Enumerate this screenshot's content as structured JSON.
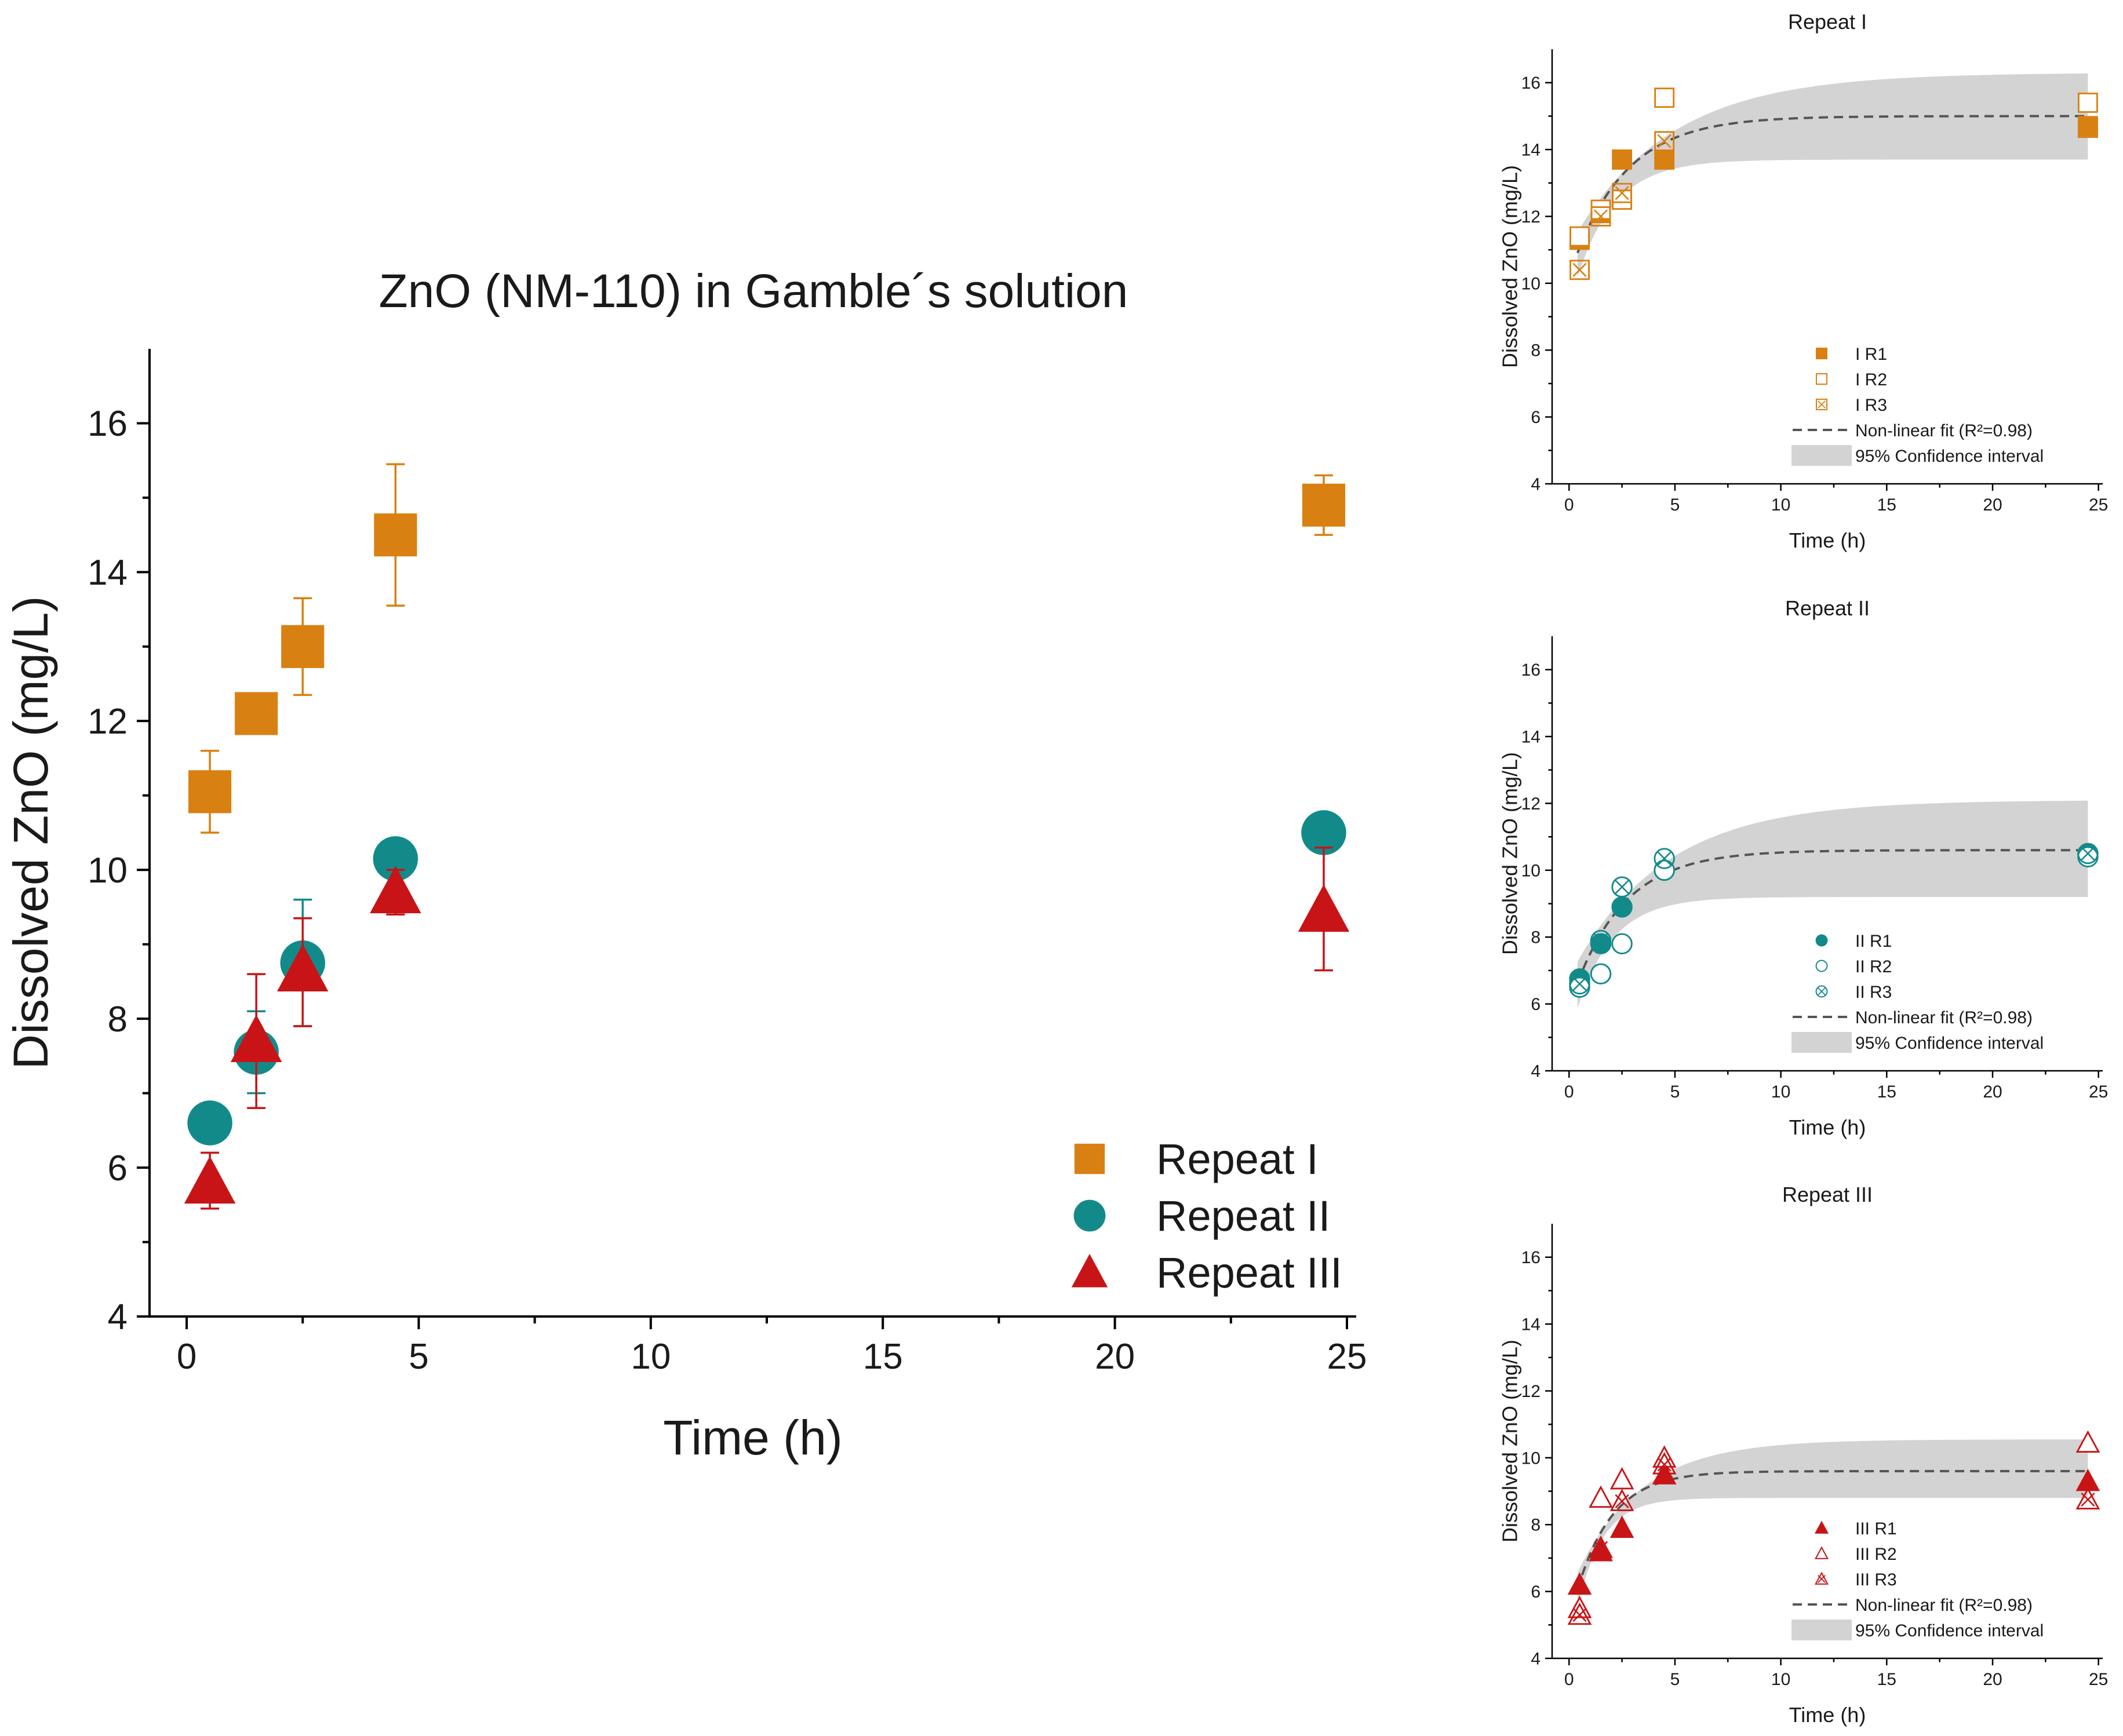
{
  "chart_data": [
    {
      "id": "main",
      "type": "scatter",
      "title": "ZnO (NM-110) in Gamble´s solution",
      "xlabel": "Time (h)",
      "ylabel": "Dissolved ZnO (mg/L)",
      "xlim": [
        -0.8,
        25.2
      ],
      "ylim": [
        4,
        17
      ],
      "xticks": [
        "0",
        "5",
        "10",
        "15",
        "20",
        "25"
      ],
      "yticks": [
        "4",
        "6",
        "8",
        "10",
        "12",
        "14",
        "16"
      ],
      "legend_position": "bottom-right",
      "series": [
        {
          "name": "Repeat I",
          "marker": "square",
          "color": "#D98012",
          "x": [
            0.5,
            1.5,
            2.5,
            4.5,
            24.5
          ],
          "y": [
            11.05,
            12.1,
            13.0,
            14.5,
            14.9
          ],
          "err_low": [
            10.5,
            11.9,
            12.35,
            13.55,
            14.5
          ],
          "err_high": [
            11.6,
            12.25,
            13.65,
            15.45,
            15.3
          ]
        },
        {
          "name": "Repeat II",
          "marker": "circle",
          "color": "#138A8A",
          "x": [
            0.5,
            1.5,
            2.5,
            4.5,
            24.5
          ],
          "y": [
            6.6,
            7.55,
            8.75,
            10.15,
            10.5
          ],
          "err_low": [
            6.5,
            7.0,
            7.9,
            9.95,
            10.35
          ],
          "err_high": [
            6.7,
            8.1,
            9.6,
            10.35,
            10.65
          ]
        },
        {
          "name": "Repeat III",
          "marker": "triangle",
          "color": "#C81416",
          "x": [
            0.5,
            1.5,
            2.5,
            4.5,
            24.5
          ],
          "y": [
            5.8,
            7.7,
            8.65,
            9.7,
            9.45
          ],
          "err_low": [
            5.45,
            6.8,
            7.9,
            9.4,
            8.65
          ],
          "err_high": [
            6.2,
            8.6,
            9.35,
            10.0,
            10.3
          ]
        }
      ]
    },
    {
      "id": "repeat1",
      "type": "scatter",
      "title": "Repeat I",
      "xlabel": "Time (h)",
      "ylabel": "Dissolved ZnO (mg/L)",
      "xlim": [
        -0.8,
        25.2
      ],
      "ylim": [
        4,
        17
      ],
      "xticks": [
        "0",
        "5",
        "10",
        "15",
        "20",
        "25"
      ],
      "yticks": [
        "4",
        "6",
        "8",
        "10",
        "12",
        "14",
        "16"
      ],
      "color": "#D98012",
      "legend_position": "bottom-right",
      "series": [
        {
          "name": "I R1",
          "marker": "square-filled",
          "x": [
            0.5,
            1.5,
            2.5,
            4.5,
            24.5
          ],
          "y": [
            11.3,
            12.1,
            13.7,
            13.7,
            14.7
          ]
        },
        {
          "name": "I R2",
          "marker": "square-open",
          "x": [
            0.5,
            1.5,
            2.5,
            4.5,
            24.5
          ],
          "y": [
            11.4,
            12.2,
            12.5,
            15.55,
            15.4
          ]
        },
        {
          "name": "I R3",
          "marker": "square-cross",
          "x": [
            0.5,
            1.5,
            2.5,
            4.5,
            24.5
          ],
          "y": [
            10.4,
            12.0,
            12.7,
            14.25,
            14.65
          ]
        }
      ],
      "fit": {
        "name": "Non-linear fit (R²=0.98)",
        "plateau": 15.0,
        "initial": 10.2,
        "rate": 0.4
      },
      "ci": {
        "name": "95% Confidence interval",
        "upper_plateau": 16.3,
        "lower_plateau": 13.7
      }
    },
    {
      "id": "repeat2",
      "type": "scatter",
      "title": "Repeat II",
      "xlabel": "Time (h)",
      "ylabel": "Dissolved ZnO (mg/L)",
      "xlim": [
        -0.8,
        25.2
      ],
      "ylim": [
        4,
        17
      ],
      "xticks": [
        "0",
        "5",
        "10",
        "15",
        "20",
        "25"
      ],
      "yticks": [
        "4",
        "6",
        "8",
        "10",
        "12",
        "14",
        "16"
      ],
      "color": "#138A8A",
      "legend_position": "bottom-right",
      "series": [
        {
          "name": "II R1",
          "marker": "circle-filled",
          "x": [
            0.5,
            1.5,
            2.5,
            4.5,
            24.5
          ],
          "y": [
            6.75,
            7.8,
            8.9,
            10.0,
            10.5
          ]
        },
        {
          "name": "II R2",
          "marker": "circle-open",
          "x": [
            0.5,
            1.5,
            2.5,
            4.5,
            24.5
          ],
          "y": [
            6.5,
            6.9,
            7.8,
            10.0,
            10.4
          ]
        },
        {
          "name": "II R3",
          "marker": "circle-cross",
          "x": [
            0.5,
            1.5,
            2.5,
            4.5,
            24.5
          ],
          "y": [
            6.6,
            7.9,
            9.5,
            10.35,
            10.5
          ]
        }
      ],
      "fit": {
        "name": "Non-linear fit (R²=0.98)",
        "plateau": 10.6,
        "initial": 5.9,
        "rate": 0.42
      },
      "ci": {
        "name": "95% Confidence interval",
        "upper_plateau": 12.1,
        "lower_plateau": 9.2
      }
    },
    {
      "id": "repeat3",
      "type": "scatter",
      "title": "Repeat III",
      "xlabel": "Time (h)",
      "ylabel": "Dissolved ZnO (mg/L)",
      "xlim": [
        -0.8,
        25.2
      ],
      "ylim": [
        4,
        17
      ],
      "xticks": [
        "0",
        "5",
        "10",
        "15",
        "20",
        "25"
      ],
      "yticks": [
        "4",
        "6",
        "8",
        "10",
        "12",
        "14",
        "16"
      ],
      "color": "#C81416",
      "legend_position": "bottom-right",
      "series": [
        {
          "name": "III R1",
          "marker": "triangle-filled",
          "x": [
            0.5,
            1.5,
            2.5,
            4.5,
            24.5
          ],
          "y": [
            6.2,
            7.2,
            7.9,
            9.5,
            9.3
          ]
        },
        {
          "name": "III R2",
          "marker": "triangle-open",
          "x": [
            0.5,
            1.5,
            2.5,
            4.5,
            24.5
          ],
          "y": [
            5.5,
            8.8,
            9.35,
            10.0,
            10.45
          ]
        },
        {
          "name": "III R3",
          "marker": "triangle-cross",
          "x": [
            0.5,
            1.5,
            2.5,
            4.5,
            24.5
          ],
          "y": [
            5.3,
            7.3,
            8.7,
            9.8,
            8.75
          ]
        }
      ],
      "fit": {
        "name": "Non-linear fit (R²=0.98)",
        "plateau": 9.6,
        "initial": 5.1,
        "rate": 0.6
      },
      "ci": {
        "name": "95% Confidence interval",
        "upper_plateau": 10.55,
        "lower_plateau": 8.8
      }
    }
  ]
}
